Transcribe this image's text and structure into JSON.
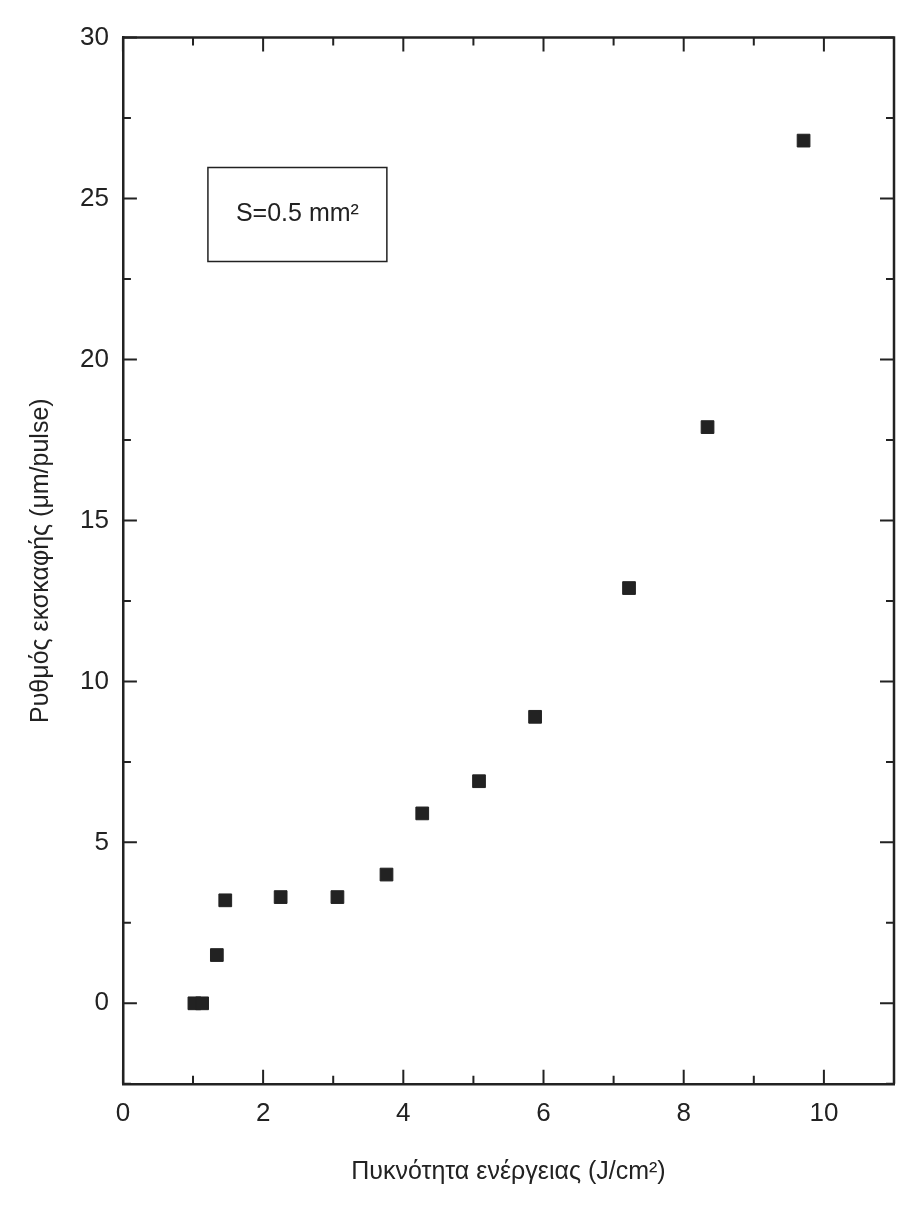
{
  "chart_data": {
    "type": "scatter",
    "xlabel": "Πυκνότητα ενέργειας (J/cm²)",
    "ylabel": "Ρυθμός εκσκαφής (μm/pulse)",
    "annotations": [
      "S=0.5 mm²"
    ],
    "x": [
      1.02,
      1.13,
      1.34,
      1.46,
      2.25,
      3.06,
      3.76,
      4.27,
      5.08,
      5.88,
      7.22,
      8.34,
      9.71
    ],
    "series": [
      {
        "color": "#222222",
        "values": [
          0,
          0,
          1.5,
          3.2,
          3.3,
          3.3,
          4.0,
          5.9,
          6.9,
          8.9,
          12.9,
          17.9,
          26.8
        ]
      }
    ],
    "marker": "square",
    "grid": false,
    "legend": false,
    "xlim": [
      0,
      11
    ],
    "xticks": [
      0,
      {
        "value": 1,
        "label": null
      },
      2,
      {
        "value": 3,
        "label": null
      },
      4,
      {
        "value": 5,
        "label": null
      },
      6,
      {
        "value": 7,
        "label": null
      },
      8,
      {
        "value": 9,
        "label": null
      },
      10
    ],
    "ylim": [
      -2.5,
      30
    ],
    "yticks": [
      {
        "value": -2.5,
        "label": null
      },
      0,
      {
        "value": 2.5,
        "label": null
      },
      5,
      {
        "value": 7.5,
        "label": null
      },
      10,
      {
        "value": 12.5,
        "label": null
      },
      15,
      {
        "value": 17.5,
        "label": null
      },
      20,
      {
        "value": 22.5,
        "label": null
      },
      25,
      {
        "value": 27.5,
        "label": null
      },
      30
    ]
  }
}
